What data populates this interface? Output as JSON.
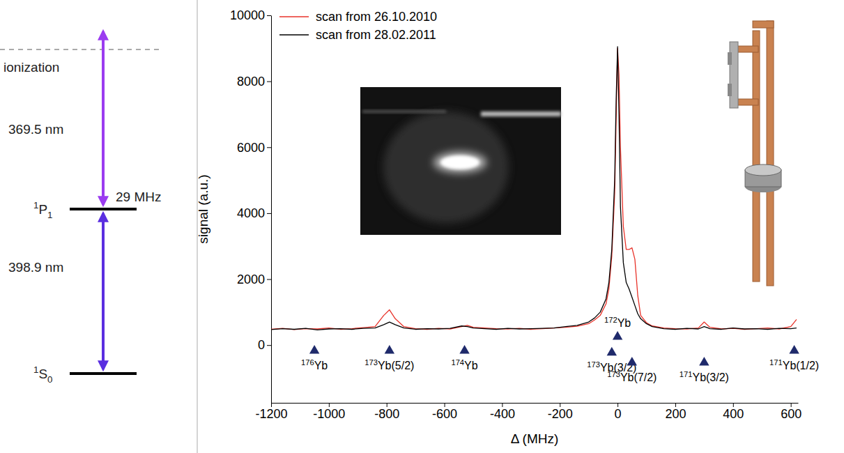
{
  "chart_data": {
    "type": "line",
    "x_label": "Δ (MHz)",
    "y_label": "signal (a.u.)",
    "xlim": [
      -1200,
      625
    ],
    "ylim": [
      -1750,
      10000
    ],
    "xticks": [
      -1200,
      -1000,
      -800,
      -600,
      -400,
      -200,
      0,
      200,
      400,
      600
    ],
    "yticks": [
      0,
      2000,
      4000,
      6000,
      8000,
      10000
    ],
    "grid": false,
    "legend": "upper left",
    "x": [
      -1200,
      -1160,
      -1120,
      -1080,
      -1040,
      -1000,
      -960,
      -920,
      -880,
      -840,
      -810,
      -790,
      -770,
      -740,
      -700,
      -660,
      -620,
      -580,
      -540,
      -520,
      -500,
      -460,
      -420,
      -380,
      -340,
      -300,
      -260,
      -220,
      -180,
      -140,
      -100,
      -80,
      -60,
      -40,
      -30,
      -20,
      -10,
      -5,
      0,
      5,
      10,
      20,
      30,
      40,
      50,
      60,
      70,
      80,
      100,
      120,
      160,
      200,
      240,
      280,
      300,
      320,
      360,
      400,
      440,
      480,
      520,
      560,
      600,
      620
    ],
    "series": [
      {
        "name": "scan from 26.10.2010",
        "color": "#e8332a",
        "values": [
          480,
          510,
          470,
          500,
          490,
          520,
          480,
          500,
          530,
          560,
          900,
          1070,
          800,
          560,
          500,
          480,
          510,
          490,
          560,
          600,
          540,
          520,
          500,
          490,
          510,
          480,
          500,
          520,
          540,
          570,
          650,
          760,
          900,
          1250,
          1700,
          2700,
          4600,
          6800,
          9000,
          8200,
          6000,
          3600,
          2900,
          2900,
          2950,
          2600,
          1500,
          900,
          680,
          580,
          520,
          500,
          490,
          520,
          700,
          540,
          490,
          510,
          480,
          500,
          520,
          490,
          560,
          780
        ]
      },
      {
        "name": "scan from 28.02.2011",
        "color": "#000000",
        "values": [
          470,
          500,
          480,
          510,
          460,
          490,
          500,
          480,
          510,
          520,
          620,
          700,
          620,
          520,
          480,
          500,
          490,
          510,
          580,
          560,
          520,
          500,
          480,
          510,
          490,
          500,
          510,
          520,
          560,
          600,
          700,
          820,
          1000,
          1400,
          1900,
          2900,
          5000,
          7400,
          9050,
          7000,
          4200,
          2500,
          1900,
          1700,
          1450,
          1200,
          950,
          800,
          650,
          560,
          500,
          480,
          510,
          490,
          560,
          500,
          480,
          520,
          490,
          500,
          480,
          510,
          500,
          520
        ]
      }
    ],
    "isotopes": {
      "color": "#1f2a6b",
      "labels": [
        "176Yb",
        "173Yb(5/2)",
        "174Yb",
        "173Yb(3/2)",
        "172Yb",
        "173Yb(7/2)",
        "171Yb(3/2)",
        "171Yb(1/2)"
      ],
      "x": [
        -1050,
        -790,
        -530,
        -20,
        0,
        50,
        300,
        612
      ],
      "y": [
        -170,
        -170,
        -170,
        -230,
        250,
        -530,
        -530,
        -170
      ]
    }
  },
  "level_diagram": {
    "levels": [
      "1S0",
      "1P1"
    ],
    "ionization": "ionization",
    "transitions": [
      {
        "label": "398.9 nm",
        "color": "#5a2ee0"
      },
      {
        "label": "369.5 nm",
        "color": "#9b3cf0"
      }
    ],
    "linewidth": "29 MHz"
  }
}
